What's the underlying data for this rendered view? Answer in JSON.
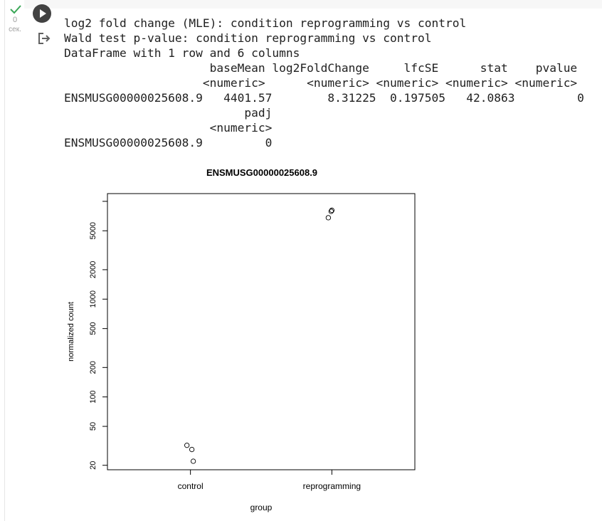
{
  "cell": {
    "execution_count": "0",
    "execution_unit": "сек.",
    "status": "completed"
  },
  "output": {
    "lines": [
      "log2 fold change (MLE): condition reprogramming vs control",
      "Wald test p-value: condition reprogramming vs control",
      "DataFrame with 1 row and 6 columns",
      "                     baseMean log2FoldChange     lfcSE      stat    pvalue",
      "                    <numeric>      <numeric> <numeric> <numeric> <numeric>",
      "ENSMUSG00000025608.9   4401.57        8.31225  0.197505   42.0863         0",
      "                          padj",
      "                     <numeric>",
      "ENSMUSG00000025608.9         0"
    ]
  },
  "chart_data": {
    "type": "scatter",
    "title": "ENSMUSG00000025608.9",
    "xlabel": "group",
    "ylabel": "normalized count",
    "y_scale": "log",
    "ylim": [
      18,
      12000
    ],
    "categories": [
      "control",
      "reprogramming"
    ],
    "y_ticks": [
      "20",
      "50",
      "100",
      "200",
      "500",
      "1000",
      "2000",
      "5000"
    ],
    "series": [
      {
        "points": [
          {
            "category": "control",
            "offset": -0.025,
            "y": 32
          },
          {
            "category": "control",
            "offset": 0.01,
            "y": 29
          },
          {
            "category": "control",
            "offset": 0.02,
            "y": 22
          },
          {
            "category": "reprogramming",
            "offset": -0.025,
            "y": 6800
          },
          {
            "category": "reprogramming",
            "offset": -0.005,
            "y": 7900
          },
          {
            "category": "reprogramming",
            "offset": 0.0,
            "y": 8100
          }
        ]
      }
    ],
    "grid": false,
    "point_style": "open-circle"
  }
}
